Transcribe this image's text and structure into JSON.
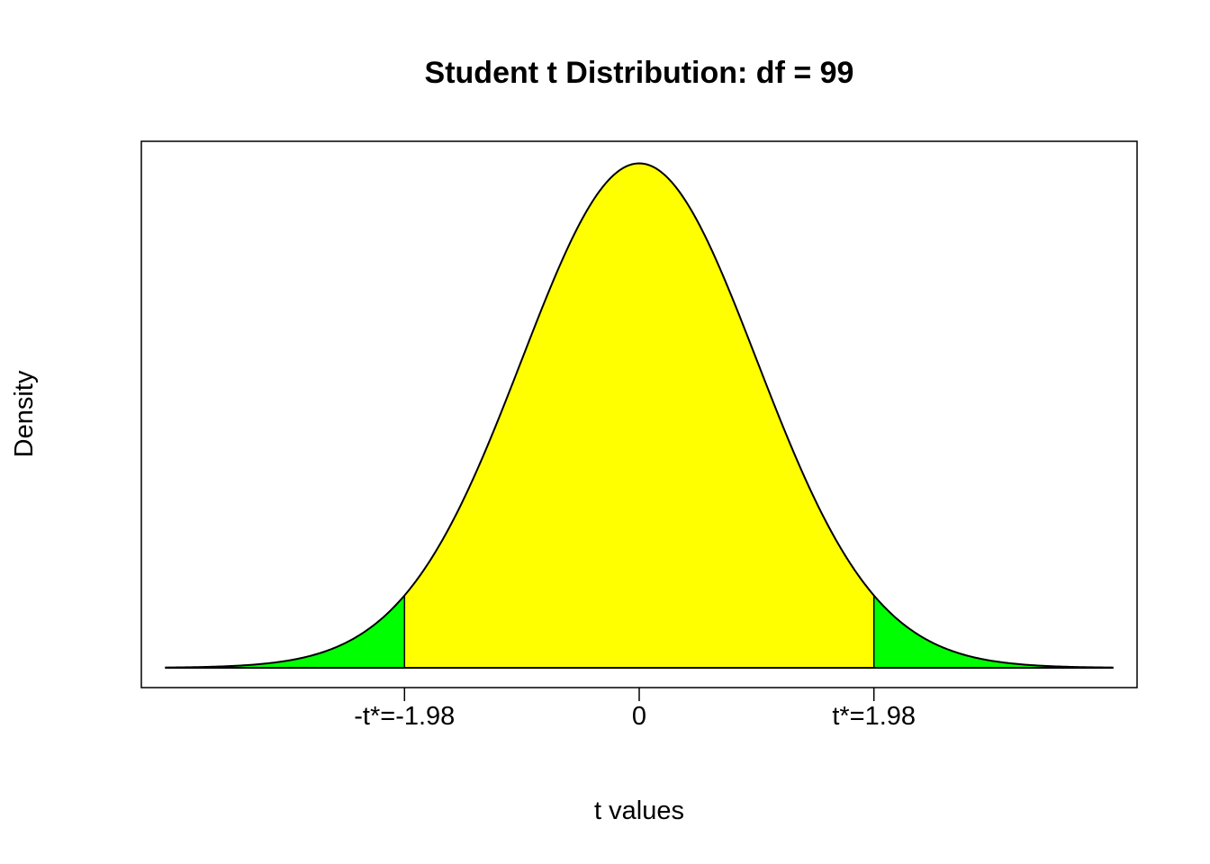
{
  "chart_data": {
    "type": "area",
    "title": "Student t Distribution: df = 99",
    "xlabel": "t values",
    "ylabel": "Density",
    "df": 99,
    "critical_value": 1.98,
    "xlim": [
      -4.2,
      4.2
    ],
    "ylim": [
      0,
      0.399
    ],
    "x_ticks": [
      {
        "value": -1.98,
        "label": "-t*=-1.98"
      },
      {
        "value": 0,
        "label": "0"
      },
      {
        "value": 1.98,
        "label": "t*=1.98"
      }
    ],
    "regions": [
      {
        "name": "left tail",
        "from": -4.0,
        "to": -1.98,
        "color": "#00ff00"
      },
      {
        "name": "center",
        "from": -1.98,
        "to": 1.98,
        "color": "#ffff00"
      },
      {
        "name": "right tail",
        "from": 1.98,
        "to": 4.0,
        "color": "#00ff00"
      }
    ],
    "curve_range": [
      -4.0,
      4.0
    ],
    "grid": false,
    "legend": "none"
  }
}
